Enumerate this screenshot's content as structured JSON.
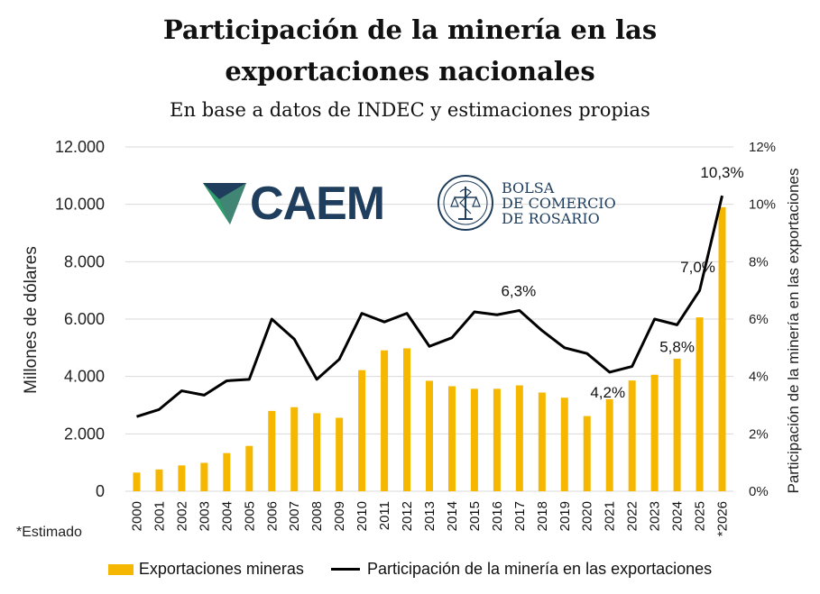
{
  "title_line1": "Participación de la minería en las",
  "title_line2": "exportaciones nacionales",
  "subtitle": "En base a datos de INDEC y estimaciones propias",
  "note": "*Estimado",
  "logos": {
    "caem": "CAEM",
    "bcr_line1": "BOLSA",
    "bcr_line2": "DE COMERCIO",
    "bcr_line3": "DE ROSARIO"
  },
  "colors": {
    "bars": "#f5b700",
    "line": "#000000",
    "brand": "#1f3d5c",
    "caem_green": "#2e9e6a"
  },
  "chart_data": {
    "type": "bar+line",
    "categories": [
      "2000",
      "2001",
      "2002",
      "2003",
      "2004",
      "2005",
      "2006",
      "2007",
      "2008",
      "2009",
      "2010",
      "2011",
      "2012",
      "2013",
      "2014",
      "2015",
      "2016",
      "2017",
      "2018",
      "2019",
      "2020",
      "2021",
      "2022",
      "2023",
      "2024",
      "2025",
      "*2026"
    ],
    "series": [
      {
        "name": "Exportaciones mineras",
        "type": "bar",
        "axis": "left",
        "values": [
          650,
          760,
          900,
          990,
          1330,
          1580,
          2800,
          2930,
          2720,
          2560,
          4220,
          4910,
          4980,
          3850,
          3660,
          3570,
          3570,
          3690,
          3440,
          3260,
          2620,
          3210,
          3860,
          4060,
          4620,
          6060,
          9900
        ]
      },
      {
        "name": "Participación de la minería en las exportaciones",
        "type": "line",
        "axis": "right",
        "values": [
          2.6,
          2.85,
          3.5,
          3.35,
          3.85,
          3.9,
          6.0,
          5.3,
          3.9,
          4.6,
          6.2,
          5.9,
          6.2,
          5.05,
          5.35,
          6.25,
          6.15,
          6.3,
          5.6,
          5.0,
          4.8,
          4.15,
          4.35,
          6.0,
          5.8,
          7.0,
          10.3
        ]
      }
    ],
    "data_labels": [
      {
        "index": 17,
        "text": "6,3%"
      },
      {
        "index": 21,
        "text": "4,2%"
      },
      {
        "index": 24,
        "text": "5,8%"
      },
      {
        "index": 25,
        "text": "7,0%"
      },
      {
        "index": 26,
        "text": "10,3%"
      }
    ],
    "ylabel": "Millones de dólares",
    "y2label": "Participación de la minería en las exportaciones",
    "ylim": [
      0,
      12000
    ],
    "y2lim": [
      0,
      12
    ],
    "yticks": [
      "0",
      "2.000",
      "4.000",
      "6.000",
      "8.000",
      "10.000",
      "12.000"
    ],
    "y2ticks": [
      "0%",
      "2%",
      "4%",
      "6%",
      "8%",
      "10%",
      "12%"
    ],
    "grid": true,
    "legend_position": "bottom"
  }
}
